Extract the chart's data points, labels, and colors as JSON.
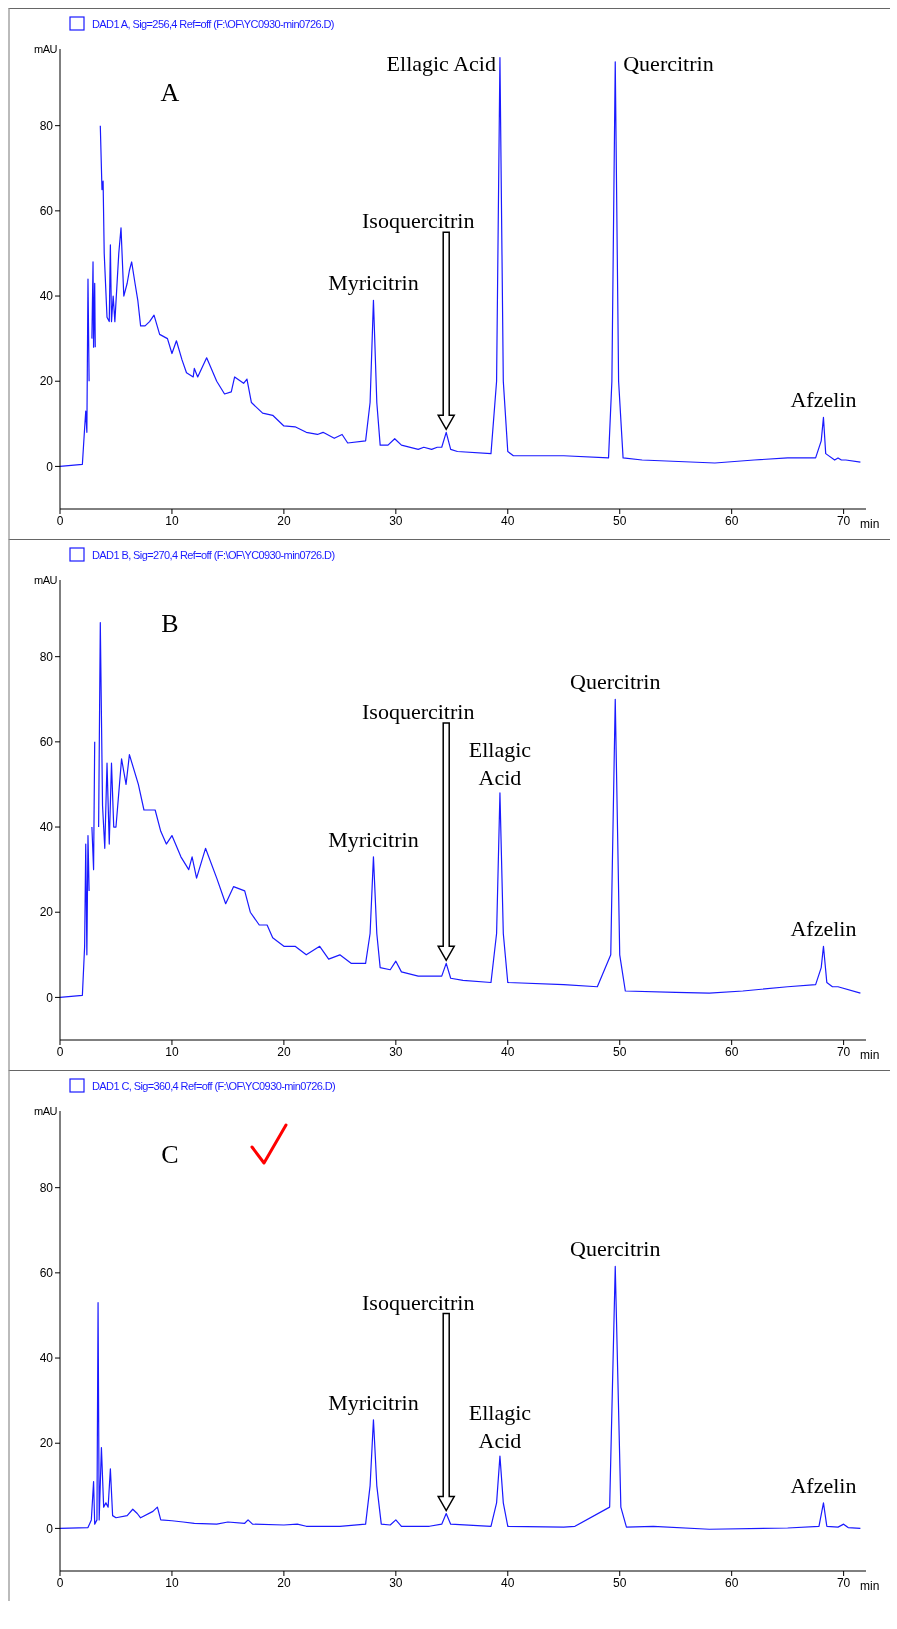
{
  "chart_data": [
    {
      "type": "line",
      "title": "A",
      "ylabel": "mAU",
      "xlabel": "min",
      "xlim": [
        0,
        72
      ],
      "xticks": [
        0,
        10,
        20,
        30,
        40,
        50,
        60,
        70
      ],
      "ylim": [
        -10,
        98
      ],
      "yticks": [
        0,
        20,
        40,
        60,
        80
      ],
      "grid": false,
      "legend": "top left",
      "marker": "none",
      "line_style": "solid",
      "series": [
        {
          "name": "DAD1 A, Sig=256,4 Ref=off (F:\\OF\\YC0930-min0726.D)",
          "color": "#1a1aff",
          "x": [
            0,
            2.0,
            2.2,
            2.3,
            2.4,
            2.5,
            2.6,
            2.75,
            2.85,
            2.95,
            3.0,
            3.1,
            3.15,
            3.35,
            3.6,
            3.75,
            3.85,
            3.95,
            4.2,
            4.4,
            4.5,
            4.6,
            4.75,
            4.9,
            5.25,
            5.45,
            5.7,
            6.0,
            6.2,
            6.4,
            6.7,
            6.95,
            7.2,
            7.6,
            8.0,
            8.4,
            8.9,
            9.6,
            10.0,
            10.4,
            10.9,
            11.3,
            11.9,
            12.0,
            12.3,
            13.1,
            14.0,
            14.7,
            15.3,
            15.6,
            16.4,
            16.7,
            17.1,
            18.1,
            19.0,
            20,
            21,
            22,
            23,
            23.5,
            24.5,
            25.2,
            25.7,
            27.3,
            27.7,
            28,
            28.3,
            28.6,
            29.3,
            29.9,
            30.5,
            32,
            32.5,
            33.2,
            33.7,
            34.1,
            34.5,
            34.9,
            35.5,
            38.5,
            39.0,
            39.3,
            39.6,
            40.0,
            40.5,
            45,
            49,
            49.3,
            49.6,
            49.9,
            50.3,
            52,
            58.5,
            62,
            65,
            67.5,
            68,
            68.2,
            68.4,
            69.2,
            69.5,
            69.8,
            70.2,
            71.5
          ],
          "values": [
            0,
            0.5,
            9,
            13,
            8,
            44,
            20,
            null,
            30,
            48,
            28,
            43,
            28,
            null,
            80,
            65,
            67,
            50,
            35,
            34,
            52,
            34,
            40,
            34,
            50,
            56,
            40,
            43,
            46,
            48,
            43,
            39,
            33,
            33,
            34,
            35.5,
            31,
            30,
            26.5,
            29.5,
            25,
            22,
            21,
            23,
            21,
            25.5,
            20,
            17,
            17.5,
            21,
            19.5,
            20.5,
            15,
            12.5,
            12,
            9.5,
            9.3,
            8,
            7.5,
            8,
            6.6,
            7.5,
            5.5,
            6,
            15,
            39,
            15,
            5,
            5,
            6.5,
            5,
            4,
            4.5,
            4,
            4.5,
            4.5,
            8,
            4,
            3.5,
            3,
            20,
            96,
            20,
            3.5,
            2.5,
            2.5,
            2,
            20,
            95,
            20,
            2,
            1.5,
            0.8,
            1.5,
            2,
            2,
            6,
            11.5,
            3,
            1.5,
            2,
            1.5,
            1.5,
            1
          ]
        }
      ],
      "annotations": [
        {
          "text": "Myricitrin",
          "x": 28,
          "y": 39
        },
        "Isoquercitrin",
        {
          "text": "Ellagic Acid",
          "x": 39.3,
          "y": 96
        },
        {
          "text": "Quercitrin",
          "x": 49.6,
          "y": 95
        },
        {
          "text": "Afzelin",
          "x": 68.2,
          "y": 11.5
        }
      ]
    },
    {
      "type": "line",
      "title": "B",
      "ylabel": "mAU",
      "xlabel": "min",
      "xlim": [
        0,
        72
      ],
      "xticks": [
        0,
        10,
        20,
        30,
        40,
        50,
        60,
        70
      ],
      "ylim": [
        -10,
        98
      ],
      "yticks": [
        0,
        20,
        40,
        60,
        80
      ],
      "grid": false,
      "legend": "top left",
      "marker": "none",
      "line_style": "solid",
      "series": [
        {
          "name": "DAD1 B, Sig=270,4 Ref=off (F:\\OF\\YC0930-min0726.D)",
          "color": "#1a1aff",
          "x": [
            0,
            2.0,
            2.2,
            2.3,
            2.4,
            2.5,
            2.6,
            2.75,
            2.85,
            3.0,
            3.1,
            3.3,
            3.45,
            3.6,
            3.8,
            4.0,
            4.2,
            4.4,
            4.6,
            4.8,
            5.0,
            5.5,
            5.9,
            6.2,
            7.0,
            7.5,
            8.5,
            9.0,
            9.5,
            10.0,
            10.8,
            11.5,
            11.8,
            12.2,
            13.0,
            14.0,
            14.8,
            15.5,
            16.5,
            17.0,
            17.8,
            18.5,
            19.0,
            20,
            21,
            22,
            23.2,
            24,
            25,
            26,
            27.3,
            27.7,
            28,
            28.3,
            28.6,
            29.5,
            30,
            30.5,
            32,
            33.5,
            34.1,
            34.5,
            34.9,
            36,
            38.5,
            39,
            39.3,
            39.6,
            40,
            45,
            48,
            49.2,
            49.6,
            50,
            50.5,
            55,
            58,
            61,
            65,
            67.5,
            68,
            68.2,
            68.5,
            69,
            69.5,
            71.5
          ],
          "values": [
            0,
            0.5,
            12,
            36,
            10,
            38,
            25,
            null,
            40,
            30,
            60,
            null,
            40,
            88,
            45,
            35,
            55,
            36,
            55,
            40,
            40,
            56,
            50,
            57,
            50,
            44,
            44,
            39,
            36,
            38,
            33,
            30,
            33,
            28,
            35,
            28,
            22,
            26,
            25,
            20,
            17,
            17,
            14,
            12,
            12,
            10,
            12,
            9,
            10,
            8,
            8,
            15,
            33,
            15,
            7,
            6.5,
            8.5,
            6,
            5,
            5,
            5,
            8,
            4.5,
            4,
            3.5,
            15,
            48,
            15,
            3.5,
            3,
            2.5,
            10,
            70,
            10,
            1.5,
            1.2,
            1,
            1.5,
            2.5,
            3,
            7,
            12,
            3.5,
            2.5,
            2.5,
            1
          ]
        }
      ],
      "annotations": [
        {
          "text": "Myricitrin",
          "x": 28,
          "y": 33
        },
        "Isoquercitrin",
        {
          "text": "Ellagic\nAcid",
          "x": 39.3,
          "y": 48
        },
        {
          "text": "Quercitrin",
          "x": 49.6,
          "y": 70
        },
        {
          "text": "Afzelin",
          "x": 68.2,
          "y": 12
        }
      ]
    },
    {
      "type": "line",
      "title": "C",
      "ylabel": "mAU",
      "xlabel": "min",
      "xlim": [
        0,
        72
      ],
      "xticks": [
        0,
        10,
        20,
        30,
        40,
        50,
        60,
        70
      ],
      "ylim": [
        -10,
        98
      ],
      "yticks": [
        0,
        20,
        40,
        60,
        80
      ],
      "grid": false,
      "legend": "top left",
      "marker": "none",
      "line_style": "solid",
      "series": [
        {
          "name": "DAD1 C, Sig=360,4 Ref=off (F:\\OF\\YC0930-min0726.D)",
          "color": "#1a1aff",
          "x": [
            0,
            2.5,
            2.8,
            3.0,
            3.1,
            3.3,
            3.4,
            3.5,
            3.7,
            3.9,
            4.1,
            4.3,
            4.5,
            4.7,
            5,
            6,
            6.5,
            6.9,
            7.2,
            8.3,
            8.7,
            9,
            10,
            11,
            12,
            14,
            15,
            16.5,
            16.8,
            17.2,
            20,
            21.2,
            22,
            25,
            27.3,
            27.7,
            28,
            28.3,
            28.7,
            29.5,
            30,
            30.5,
            33,
            34.1,
            34.5,
            34.9,
            38.5,
            39,
            39.3,
            39.6,
            40,
            45,
            46,
            49.1,
            49.6,
            50.1,
            50.6,
            53,
            58,
            65,
            67.8,
            68.2,
            68.5,
            69.5,
            70,
            70.4,
            71.5
          ],
          "values": [
            0,
            0.2,
            2,
            11,
            1,
            2,
            53,
            2,
            19,
            5,
            6,
            5,
            14,
            3,
            2.5,
            3,
            4.5,
            3.5,
            2.5,
            4,
            5,
            2,
            1.8,
            1.5,
            1.2,
            1,
            1.5,
            1.2,
            2,
            1,
            0.8,
            1,
            0.5,
            0.5,
            1,
            10,
            25.5,
            10,
            1,
            0.8,
            2,
            0.5,
            0.5,
            1,
            3.5,
            1,
            0.5,
            6,
            17,
            6,
            0.5,
            0.3,
            0.5,
            5,
            61.5,
            5,
            0.3,
            0.5,
            -0.2,
            0.1,
            0.5,
            6,
            0.5,
            0.3,
            1,
            0.2,
            0
          ]
        }
      ],
      "annotations": [
        {
          "text": "Myricitrin",
          "x": 28,
          "y": 25.5
        },
        "Isoquercitrin",
        {
          "text": "Ellagic\nAcid",
          "x": 39.3,
          "y": 17
        },
        {
          "text": "Quercitrin",
          "x": 49.6,
          "y": 61.5
        },
        {
          "text": "Afzelin",
          "x": 68.2,
          "y": 6
        }
      ]
    }
  ]
}
